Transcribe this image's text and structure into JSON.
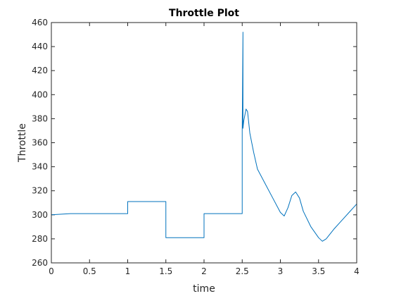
{
  "chart_data": {
    "type": "line",
    "title": "Throttle Plot",
    "xlabel": "time",
    "ylabel": "Throttle",
    "xlim": [
      0,
      4
    ],
    "ylim": [
      260,
      460
    ],
    "xticks": [
      0,
      0.5,
      1,
      1.5,
      2,
      2.5,
      3,
      3.5,
      4
    ],
    "xtick_labels": [
      "0",
      "0.5",
      "1",
      "1.5",
      "2",
      "2.5",
      "3",
      "3.5",
      "4"
    ],
    "yticks": [
      260,
      280,
      300,
      320,
      340,
      360,
      380,
      400,
      420,
      440,
      460
    ],
    "ytick_labels": [
      "260",
      "280",
      "300",
      "320",
      "340",
      "360",
      "380",
      "400",
      "420",
      "440",
      "460"
    ],
    "grid": false,
    "colors": {
      "series": "#0072BD",
      "axis": "#262626"
    },
    "series": [
      {
        "x": [
          0,
          0.25,
          0.5,
          0.75,
          1.0,
          1.0,
          1.5,
          1.5,
          2.0,
          2.0,
          2.5,
          2.5,
          2.51,
          2.51,
          2.52,
          2.55,
          2.57,
          2.6,
          2.65,
          2.7,
          2.8,
          2.9,
          3.0,
          3.05,
          3.1,
          3.15,
          3.2,
          3.25,
          3.3,
          3.4,
          3.5,
          3.55,
          3.6,
          3.7,
          3.8,
          3.9,
          4.0
        ],
        "y": [
          300,
          301,
          301,
          301,
          301,
          311,
          311,
          281,
          281,
          301,
          301,
          370,
          452,
          372,
          378,
          388,
          386,
          368,
          352,
          338,
          326,
          314,
          302,
          299,
          306,
          316,
          319,
          314,
          303,
          290,
          281,
          278,
          280,
          288,
          295,
          302,
          309
        ]
      }
    ]
  }
}
